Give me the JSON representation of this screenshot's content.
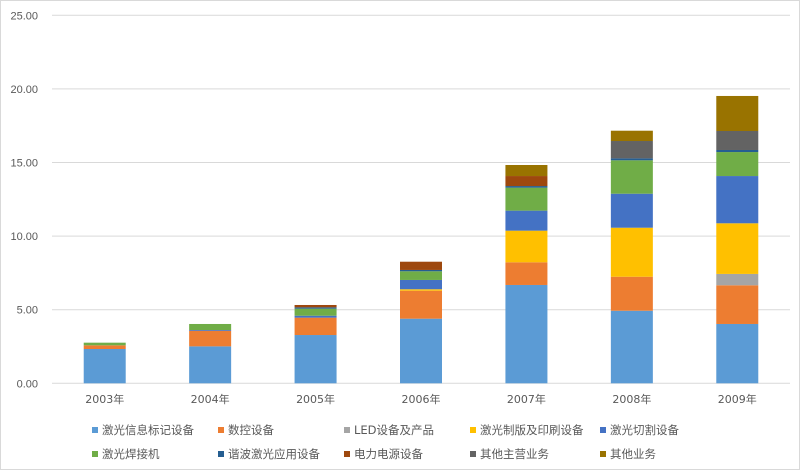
{
  "chart_data": {
    "type": "bar",
    "stacked": true,
    "title": "",
    "xlabel": "",
    "ylabel": "",
    "ylim": [
      0,
      25
    ],
    "yticks": [
      "0.00",
      "5.00",
      "10.00",
      "15.00",
      "20.00",
      "25.00"
    ],
    "grid": true,
    "legend_position": "bottom",
    "categories": [
      "2003年",
      "2004年",
      "2005年",
      "2006年",
      "2007年",
      "2008年",
      "2009年"
    ],
    "series": [
      {
        "name": "激光信息标记设备",
        "color": "#5B9BD5",
        "values": [
          2.33,
          2.51,
          3.28,
          4.39,
          6.68,
          4.93,
          4.03
        ]
      },
      {
        "name": "数控设备",
        "color": "#ED7D31",
        "values": [
          0.25,
          1.06,
          1.18,
          1.9,
          1.54,
          2.31,
          2.63
        ]
      },
      {
        "name": "LED设备及产品",
        "color": "#A5A5A5",
        "values": [
          0,
          0,
          0,
          0,
          0,
          0,
          0.77
        ]
      },
      {
        "name": "激光制版及印刷设备",
        "color": "#FFC000",
        "values": [
          0,
          0,
          0,
          0.1,
          2.15,
          3.33,
          3.44
        ]
      },
      {
        "name": "激光切割设备",
        "color": "#4472C4",
        "values": [
          0,
          0.05,
          0.13,
          0.63,
          1.36,
          2.31,
          3.21
        ]
      },
      {
        "name": "激光焊接机",
        "color": "#70AD47",
        "values": [
          0.18,
          0.41,
          0.48,
          0.59,
          1.56,
          2.27,
          1.63
        ]
      },
      {
        "name": "谐波激光应用设备",
        "color": "#255E91",
        "values": [
          0,
          0,
          0.09,
          0.09,
          0.11,
          0.13,
          0.14
        ]
      },
      {
        "name": "电力电源设备",
        "color": "#9E480E",
        "values": [
          0,
          0,
          0.16,
          0.56,
          0.68,
          0,
          0
        ]
      },
      {
        "name": "其他主营业务",
        "color": "#636363",
        "values": [
          0,
          0,
          0,
          0,
          0,
          1.18,
          1.29
        ]
      },
      {
        "name": "其他业务",
        "color": "#997300",
        "values": [
          0,
          0,
          0,
          0,
          0.75,
          0.7,
          2.38
        ]
      }
    ]
  }
}
